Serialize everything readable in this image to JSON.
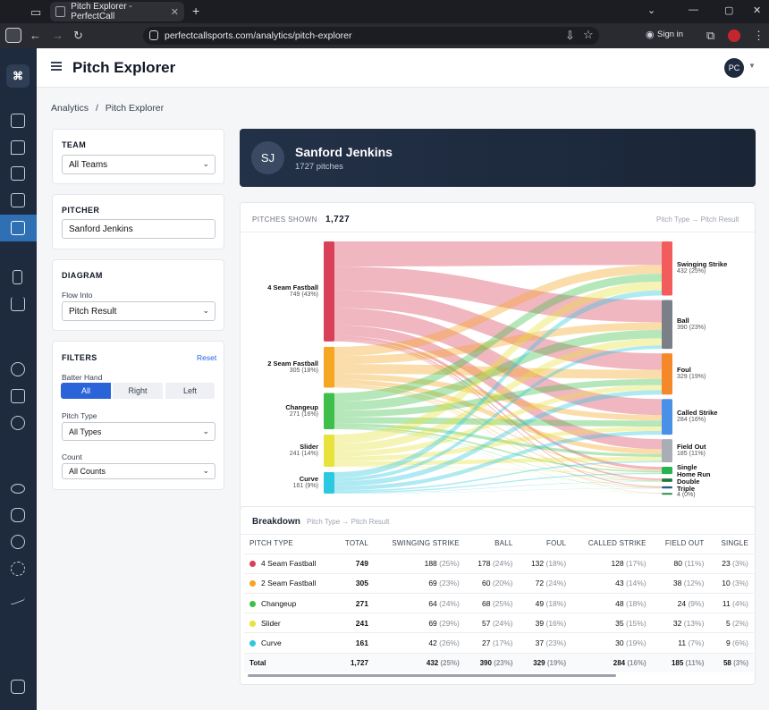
{
  "browser": {
    "tab_title": "Pitch Explorer - PerfectCall",
    "url": "perfectcallsports.com/analytics/pitch-explorer",
    "sign_in": "Sign in"
  },
  "header": {
    "title": "Pitch Explorer",
    "avatar": "PC"
  },
  "breadcrumb": {
    "parent": "Analytics",
    "sep": "/",
    "current": "Pitch Explorer"
  },
  "team": {
    "label": "TEAM",
    "value": "All Teams"
  },
  "pitcher": {
    "label": "PITCHER",
    "value": "Sanford Jenkins"
  },
  "diagram": {
    "label": "DIAGRAM",
    "flow_label": "Flow Into",
    "flow_value": "Pitch Result"
  },
  "filters": {
    "label": "FILTERS",
    "reset": "Reset",
    "batter_hand": "Batter Hand",
    "hands": [
      "All",
      "Right",
      "Left"
    ],
    "pitch_type_label": "Pitch Type",
    "pitch_type_value": "All Types",
    "count_label": "Count",
    "count_value": "All Counts"
  },
  "hero": {
    "initials": "SJ",
    "name": "Sanford Jenkins",
    "count": "1727 pitches"
  },
  "sankey": {
    "shown_label": "PITCHES SHOWN",
    "shown_value": "1,727",
    "path": "Pitch Type → Pitch Result",
    "sources": [
      {
        "name": "4 Seam Fastball",
        "sub": "749 (43%)",
        "color": "#d9415a"
      },
      {
        "name": "2 Seam Fastball",
        "sub": "305 (18%)",
        "color": "#f5a623"
      },
      {
        "name": "Changeup",
        "sub": "271 (16%)",
        "color": "#3fbf4a"
      },
      {
        "name": "Slider",
        "sub": "241 (14%)",
        "color": "#e8e23c"
      },
      {
        "name": "Curve",
        "sub": "161 (9%)",
        "color": "#2cc8e0"
      }
    ],
    "targets": [
      {
        "name": "Swinging Strike",
        "sub": "432 (25%)",
        "color": "#f25c5c"
      },
      {
        "name": "Ball",
        "sub": "390 (23%)",
        "color": "#7a7f88"
      },
      {
        "name": "Foul",
        "sub": "329 (19%)",
        "color": "#f5892a"
      },
      {
        "name": "Called Strike",
        "sub": "284 (16%)",
        "color": "#4a8fe8"
      },
      {
        "name": "Field Out",
        "sub": "185 (11%)",
        "color": "#a9adb5"
      },
      {
        "name": "Single",
        "sub": "58 (3%)",
        "color": "#27b34f"
      },
      {
        "name": "Home Run",
        "sub": "",
        "color": "#1f7a3a"
      },
      {
        "name": "Double",
        "sub": "",
        "color": "#1f5f8a"
      },
      {
        "name": "Triple",
        "sub": "4 (0%)",
        "color": "#2d8a4f"
      }
    ]
  },
  "breakdown": {
    "title": "Breakdown",
    "path": "Pitch Type → Pitch Result",
    "columns": [
      "PITCH TYPE",
      "TOTAL",
      "SWINGING STRIKE",
      "BALL",
      "FOUL",
      "CALLED STRIKE",
      "FIELD OUT",
      "SINGLE"
    ],
    "rows": [
      {
        "name": "4 Seam Fastball",
        "color": "#d9415a",
        "total": "749",
        "cells": [
          [
            "188",
            "(25%)"
          ],
          [
            "178",
            "(24%)"
          ],
          [
            "132",
            "(18%)"
          ],
          [
            "128",
            "(17%)"
          ],
          [
            "80",
            "(11%)"
          ],
          [
            "23",
            "(3%)"
          ]
        ]
      },
      {
        "name": "2 Seam Fastball",
        "color": "#f5a623",
        "total": "305",
        "cells": [
          [
            "69",
            "(23%)"
          ],
          [
            "60",
            "(20%)"
          ],
          [
            "72",
            "(24%)"
          ],
          [
            "43",
            "(14%)"
          ],
          [
            "38",
            "(12%)"
          ],
          [
            "10",
            "(3%)"
          ]
        ]
      },
      {
        "name": "Changeup",
        "color": "#3fbf4a",
        "total": "271",
        "cells": [
          [
            "64",
            "(24%)"
          ],
          [
            "68",
            "(25%)"
          ],
          [
            "49",
            "(18%)"
          ],
          [
            "48",
            "(18%)"
          ],
          [
            "24",
            "(9%)"
          ],
          [
            "11",
            "(4%)"
          ]
        ]
      },
      {
        "name": "Slider",
        "color": "#e8e23c",
        "total": "241",
        "cells": [
          [
            "69",
            "(29%)"
          ],
          [
            "57",
            "(24%)"
          ],
          [
            "39",
            "(16%)"
          ],
          [
            "35",
            "(15%)"
          ],
          [
            "32",
            "(13%)"
          ],
          [
            "5",
            "(2%)"
          ]
        ]
      },
      {
        "name": "Curve",
        "color": "#2cc8e0",
        "total": "161",
        "cells": [
          [
            "42",
            "(26%)"
          ],
          [
            "27",
            "(17%)"
          ],
          [
            "37",
            "(23%)"
          ],
          [
            "30",
            "(19%)"
          ],
          [
            "11",
            "(7%)"
          ],
          [
            "9",
            "(6%)"
          ]
        ]
      }
    ],
    "total": {
      "name": "Total",
      "total": "1,727",
      "cells": [
        [
          "432",
          "(25%)"
        ],
        [
          "390",
          "(23%)"
        ],
        [
          "329",
          "(19%)"
        ],
        [
          "284",
          "(16%)"
        ],
        [
          "185",
          "(11%)"
        ],
        [
          "58",
          "(3%)"
        ]
      ]
    }
  }
}
